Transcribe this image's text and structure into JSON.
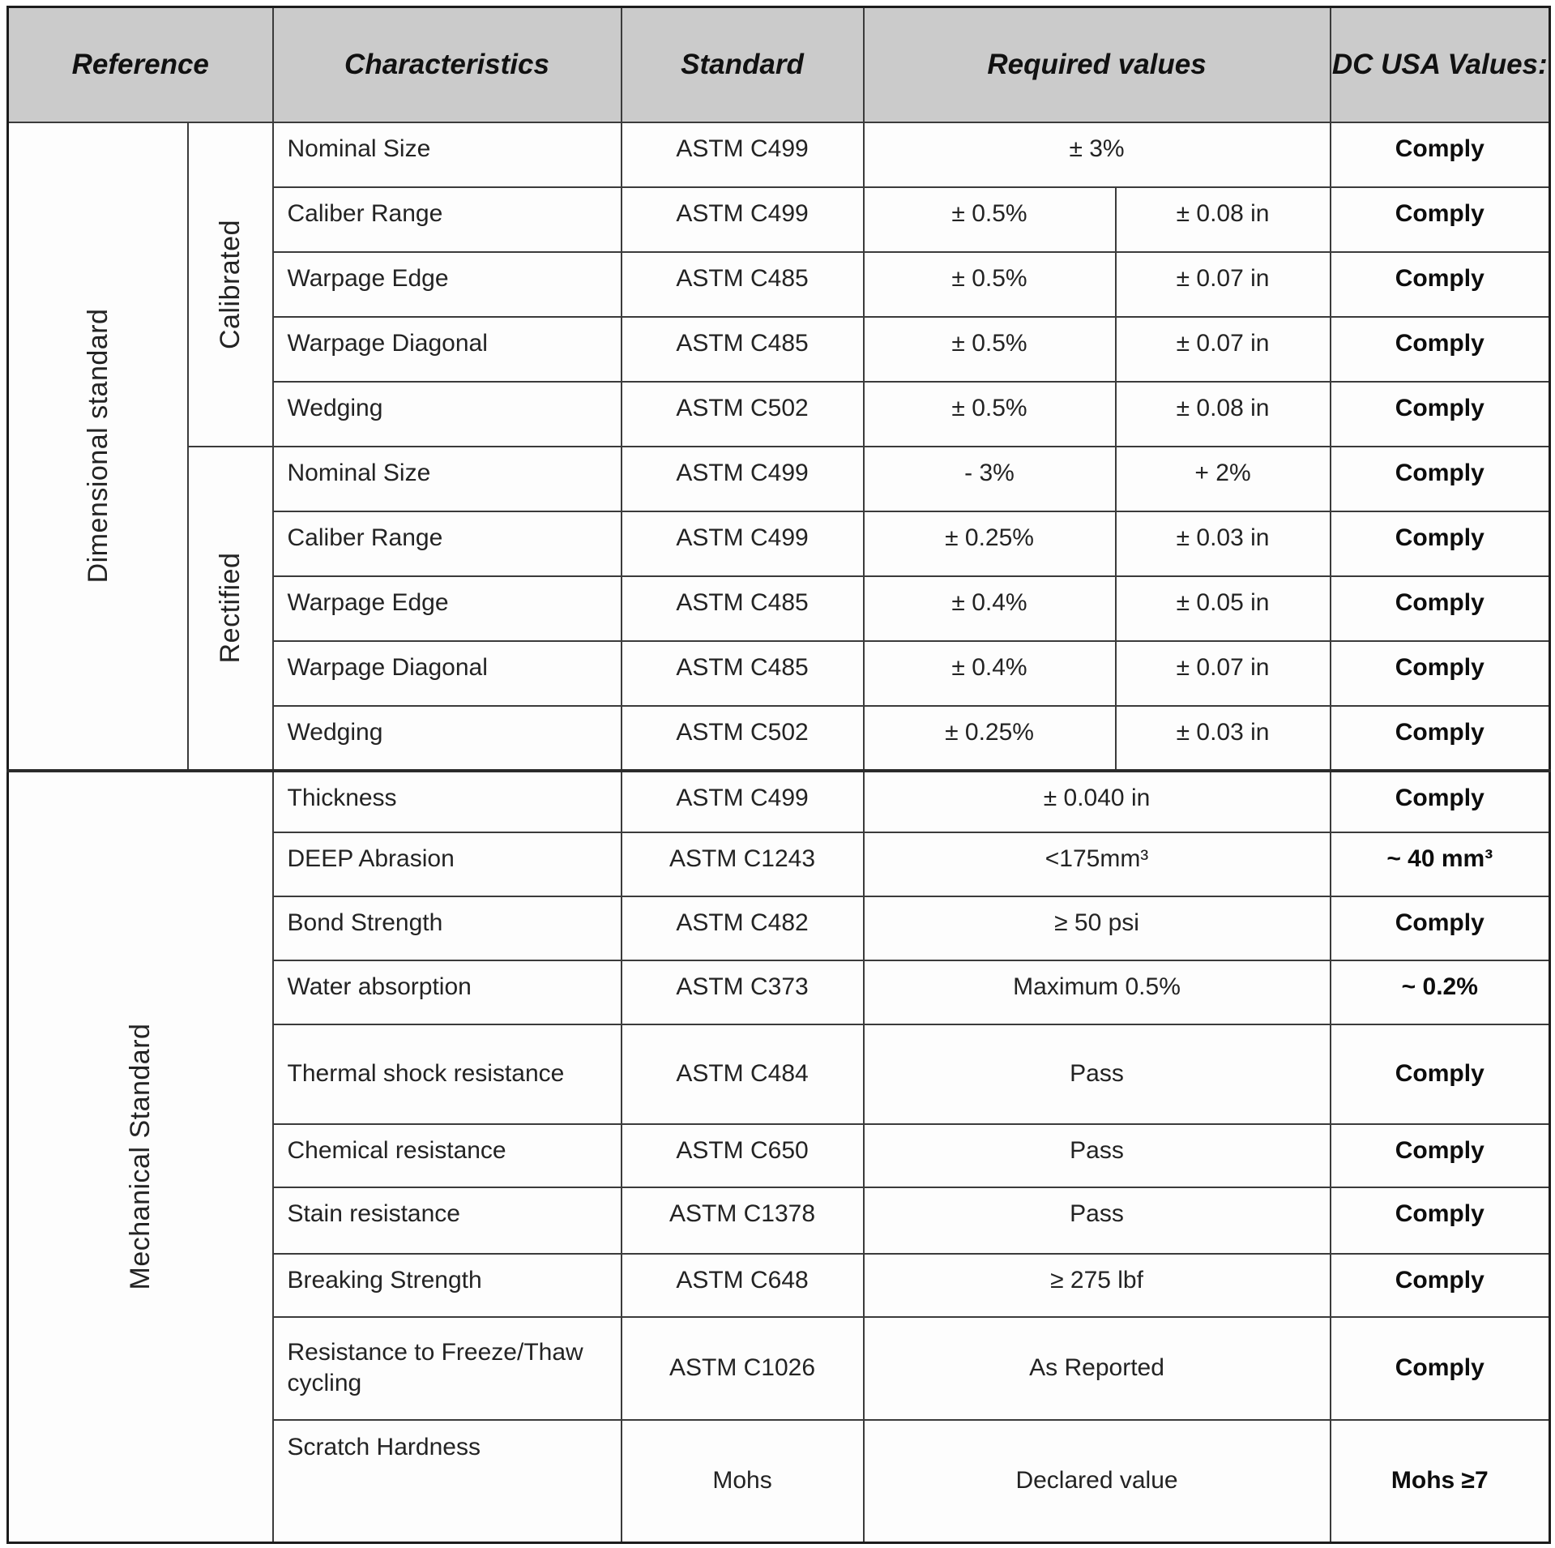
{
  "header": {
    "reference": "Reference",
    "characteristics": "Characteristics",
    "standard": "Standard",
    "required_values": "Required values",
    "dc_usa_values": "DC USA Values:"
  },
  "dimensional": {
    "label": "Dimensional standard",
    "groups": [
      {
        "label": "Calibrated",
        "rows": [
          {
            "characteristic": "Nominal Size",
            "standard": "ASTM C499",
            "required": [
              "± 3%"
            ],
            "dc_usa": "Comply"
          },
          {
            "characteristic": "Caliber Range",
            "standard": "ASTM C499",
            "required": [
              "± 0.5%",
              "± 0.08 in"
            ],
            "dc_usa": "Comply"
          },
          {
            "characteristic": "Warpage Edge",
            "standard": "ASTM C485",
            "required": [
              "± 0.5%",
              "± 0.07 in"
            ],
            "dc_usa": "Comply"
          },
          {
            "characteristic": "Warpage Diagonal",
            "standard": "ASTM C485",
            "required": [
              "± 0.5%",
              "± 0.07 in"
            ],
            "dc_usa": "Comply"
          },
          {
            "characteristic": "Wedging",
            "standard": "ASTM C502",
            "required": [
              "± 0.5%",
              "± 0.08 in"
            ],
            "dc_usa": "Comply"
          }
        ]
      },
      {
        "label": "Rectified",
        "rows": [
          {
            "characteristic": "Nominal Size",
            "standard": "ASTM C499",
            "required": [
              "- 3%",
              "+ 2%"
            ],
            "dc_usa": "Comply"
          },
          {
            "characteristic": "Caliber Range",
            "standard": "ASTM C499",
            "required": [
              "± 0.25%",
              "± 0.03 in"
            ],
            "dc_usa": "Comply"
          },
          {
            "characteristic": "Warpage Edge",
            "standard": "ASTM C485",
            "required": [
              "± 0.4%",
              "± 0.05 in"
            ],
            "dc_usa": "Comply"
          },
          {
            "characteristic": "Warpage Diagonal",
            "standard": "ASTM C485",
            "required": [
              "± 0.4%",
              "± 0.07 in"
            ],
            "dc_usa": "Comply"
          },
          {
            "characteristic": "Wedging",
            "standard": "ASTM C502",
            "required": [
              "± 0.25%",
              "± 0.03 in"
            ],
            "dc_usa": "Comply"
          }
        ]
      }
    ]
  },
  "mechanical": {
    "label": "Mechanical Standard",
    "rows": [
      {
        "characteristic": "Thickness",
        "standard": "ASTM C499",
        "required": "± 0.040 in",
        "dc_usa": "Comply"
      },
      {
        "characteristic": "DEEP Abrasion",
        "standard": "ASTM C1243",
        "required": "<175mm³",
        "dc_usa": "~ 40 mm³"
      },
      {
        "characteristic": "Bond Strength",
        "standard": "ASTM C482",
        "required": "≥ 50 psi",
        "dc_usa": "Comply"
      },
      {
        "characteristic": "Water absorption",
        "standard": "ASTM C373",
        "required": "Maximum 0.5%",
        "dc_usa": "~ 0.2%"
      },
      {
        "characteristic": "Thermal shock resistance",
        "standard": "ASTM C484",
        "required": "Pass",
        "dc_usa": "Comply"
      },
      {
        "characteristic": "Chemical resistance",
        "standard": "ASTM C650",
        "required": "Pass",
        "dc_usa": "Comply"
      },
      {
        "characteristic": "Stain resistance",
        "standard": "ASTM C1378",
        "required": "Pass",
        "dc_usa": "Comply"
      },
      {
        "characteristic": "Breaking Strength",
        "standard": "ASTM C648",
        "required": "≥ 275 lbf",
        "dc_usa": "Comply"
      },
      {
        "characteristic": "Resistance to Freeze/Thaw cycling",
        "standard": "ASTM C1026",
        "required": "As Reported",
        "dc_usa": "Comply"
      },
      {
        "characteristic": "Scratch Hardness",
        "standard": "Mohs",
        "required": "Declared value",
        "dc_usa": "Mohs ≥7"
      }
    ]
  }
}
